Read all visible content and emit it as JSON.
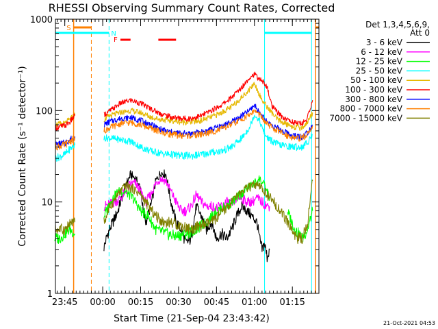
{
  "chart_data": {
    "type": "line",
    "title": "RHESSI Observing Summary Count Rates, Corrected",
    "xlabel": "Start Time (21-Sep-04 23:43:42)",
    "ylabel": "Corrected Count Rate (s⁻¹ detector⁻¹)",
    "yscale": "log",
    "xlim_min": [
      -3.7,
      100.5
    ],
    "ylim": [
      1,
      1000
    ],
    "x_ticks": [
      {
        "m": 0,
        "label": "23:45"
      },
      {
        "m": 15,
        "label": "00:00"
      },
      {
        "m": 30,
        "label": "00:15"
      },
      {
        "m": 45,
        "label": "00:30"
      },
      {
        "m": 60,
        "label": "00:45"
      },
      {
        "m": 75,
        "label": "01:00"
      },
      {
        "m": 90,
        "label": "01:15"
      }
    ],
    "y_ticks": [
      {
        "v": 1,
        "label": "1"
      },
      {
        "v": 10,
        "label": "10"
      },
      {
        "v": 100,
        "label": "100"
      },
      {
        "v": 1000,
        "label": "1000"
      }
    ],
    "legend": {
      "header": "Det 1,3,4,5,6,9,",
      "header2": "Att 0",
      "placement": "right"
    },
    "timestamp": "21-Oct-2021 04:53",
    "flag_labels": {
      "saa": "S",
      "night": "N",
      "flare": "F"
    },
    "flags": {
      "saa_m": [
        [
          3.5,
          10.5
        ],
        [
          99.2,
          100.5
        ]
      ],
      "night_m": [
        [
          -3.7,
          17.5
        ],
        [
          79,
          97.6
        ]
      ],
      "flare_m": [
        [
          22,
          26
        ],
        [
          37,
          44
        ]
      ]
    },
    "series": [
      {
        "name": "3 - 6 keV",
        "color": "#000000",
        "points": [
          [
            15.5,
            3.2
          ],
          [
            17,
            4.5
          ],
          [
            19,
            6
          ],
          [
            21,
            8
          ],
          [
            24,
            15
          ],
          [
            26,
            20
          ],
          [
            28,
            18
          ],
          [
            30,
            14
          ],
          [
            31,
            8
          ],
          [
            32,
            6
          ],
          [
            34,
            9
          ],
          [
            36,
            17
          ],
          [
            38,
            21
          ],
          [
            40,
            20
          ],
          [
            42,
            10
          ],
          [
            44,
            6
          ],
          [
            46,
            5
          ],
          [
            48,
            3.5
          ],
          [
            50,
            4
          ],
          [
            52,
            9
          ],
          [
            54,
            7
          ],
          [
            56,
            5
          ],
          [
            58,
            6
          ],
          [
            60,
            4
          ],
          [
            62,
            4.5
          ],
          [
            64,
            4
          ],
          [
            66,
            5
          ],
          [
            68,
            7
          ],
          [
            70,
            9
          ],
          [
            72,
            8
          ],
          [
            74,
            7
          ],
          [
            76,
            6
          ],
          [
            77,
            4
          ],
          [
            78,
            3
          ],
          [
            79,
            3.5
          ],
          [
            80,
            2.5
          ],
          [
            81,
            3
          ]
        ]
      },
      {
        "name": "6 - 12 keV",
        "color": "#ff00ff",
        "points": [
          [
            15.5,
            9
          ],
          [
            18,
            9.5
          ],
          [
            20,
            10
          ],
          [
            22,
            11
          ],
          [
            24,
            13
          ],
          [
            26,
            16
          ],
          [
            28,
            16
          ],
          [
            30,
            13
          ],
          [
            32,
            10
          ],
          [
            34,
            12
          ],
          [
            36,
            16
          ],
          [
            38,
            18
          ],
          [
            40,
            17
          ],
          [
            42,
            13
          ],
          [
            44,
            10
          ],
          [
            46,
            8
          ],
          [
            48,
            8
          ],
          [
            50,
            9
          ],
          [
            52,
            12
          ],
          [
            54,
            10
          ],
          [
            56,
            9
          ],
          [
            58,
            9
          ],
          [
            60,
            8.5
          ],
          [
            62,
            9
          ],
          [
            64,
            10
          ],
          [
            66,
            9.5
          ],
          [
            68,
            11
          ],
          [
            70,
            11
          ],
          [
            72,
            10
          ],
          [
            74,
            10
          ],
          [
            76,
            11
          ],
          [
            78,
            10
          ],
          [
            80,
            9
          ],
          [
            81,
            9
          ]
        ]
      },
      {
        "name": "12 - 25 keV",
        "color": "#00ff00",
        "points": [
          [
            -4,
            4
          ],
          [
            -2,
            4
          ],
          [
            0,
            4.5
          ],
          [
            2,
            5
          ],
          [
            4,
            4.5
          ],
          [
            15.5,
            7
          ],
          [
            18,
            10
          ],
          [
            21,
            13
          ],
          [
            24,
            13
          ],
          [
            27,
            11
          ],
          [
            30,
            8
          ],
          [
            33,
            7
          ],
          [
            36,
            5
          ],
          [
            40,
            4.5
          ],
          [
            44,
            4.2
          ],
          [
            48,
            4.5
          ],
          [
            52,
            5
          ],
          [
            56,
            6
          ],
          [
            60,
            8
          ],
          [
            64,
            9
          ],
          [
            68,
            11
          ],
          [
            72,
            14
          ],
          [
            75,
            16
          ],
          [
            77,
            18
          ],
          [
            79,
            15
          ],
          [
            81,
            11
          ],
          [
            88,
            8
          ],
          [
            91,
            5
          ],
          [
            94,
            4
          ],
          [
            96,
            5
          ],
          [
            98,
            8
          ]
        ]
      },
      {
        "name": "25 - 50 keV",
        "color": "#00ffff",
        "points": [
          [
            -3.7,
            30
          ],
          [
            0,
            33
          ],
          [
            2,
            38
          ],
          [
            4,
            42
          ],
          [
            15.5,
            50
          ],
          [
            18,
            50
          ],
          [
            22,
            48
          ],
          [
            26,
            46
          ],
          [
            30,
            40
          ],
          [
            34,
            36
          ],
          [
            38,
            34
          ],
          [
            42,
            33
          ],
          [
            46,
            32
          ],
          [
            50,
            32
          ],
          [
            54,
            33
          ],
          [
            58,
            35
          ],
          [
            62,
            36
          ],
          [
            66,
            40
          ],
          [
            70,
            50
          ],
          [
            73,
            65
          ],
          [
            75,
            90
          ],
          [
            77,
            78
          ],
          [
            79,
            55
          ],
          [
            81,
            48
          ],
          [
            85,
            42
          ],
          [
            90,
            40
          ],
          [
            94,
            40
          ],
          [
            96,
            45
          ],
          [
            98,
            55
          ]
        ]
      },
      {
        "name": "50 - 100 keV",
        "color": "#e6b800",
        "points": [
          [
            -3.7,
            70
          ],
          [
            0,
            72
          ],
          [
            2,
            80
          ],
          [
            4,
            90
          ],
          [
            15.5,
            80
          ],
          [
            18,
            88
          ],
          [
            22,
            95
          ],
          [
            26,
            100
          ],
          [
            30,
            95
          ],
          [
            34,
            85
          ],
          [
            38,
            80
          ],
          [
            42,
            78
          ],
          [
            46,
            75
          ],
          [
            50,
            75
          ],
          [
            54,
            78
          ],
          [
            58,
            85
          ],
          [
            62,
            95
          ],
          [
            66,
            110
          ],
          [
            70,
            140
          ],
          [
            73,
            170
          ],
          [
            75,
            200
          ],
          [
            76.5,
            160
          ],
          [
            78,
            130
          ],
          [
            80,
            110
          ],
          [
            84,
            80
          ],
          [
            88,
            70
          ],
          [
            92,
            65
          ],
          [
            94,
            65
          ],
          [
            96,
            75
          ],
          [
            98,
            95
          ]
        ]
      },
      {
        "name": "100 - 300 keV",
        "color": "#ff0000",
        "points": [
          [
            -3.7,
            65
          ],
          [
            0,
            68
          ],
          [
            2,
            75
          ],
          [
            4,
            88
          ],
          [
            15.5,
            90
          ],
          [
            18,
            100
          ],
          [
            22,
            120
          ],
          [
            26,
            130
          ],
          [
            30,
            120
          ],
          [
            34,
            105
          ],
          [
            38,
            92
          ],
          [
            42,
            85
          ],
          [
            46,
            82
          ],
          [
            50,
            82
          ],
          [
            54,
            88
          ],
          [
            58,
            100
          ],
          [
            62,
            115
          ],
          [
            66,
            140
          ],
          [
            70,
            180
          ],
          [
            73,
            230
          ],
          [
            75,
            250
          ],
          [
            77,
            220
          ],
          [
            79,
            200
          ],
          [
            80,
            180
          ],
          [
            82,
            110
          ],
          [
            86,
            85
          ],
          [
            90,
            75
          ],
          [
            93,
            72
          ],
          [
            95,
            75
          ],
          [
            97,
            100
          ],
          [
            98,
            130
          ]
        ]
      },
      {
        "name": "300 - 800 keV",
        "color": "#0000ff",
        "points": [
          [
            -3.7,
            42
          ],
          [
            0,
            44
          ],
          [
            2,
            48
          ],
          [
            4,
            52
          ],
          [
            15.5,
            70
          ],
          [
            18,
            76
          ],
          [
            22,
            82
          ],
          [
            26,
            84
          ],
          [
            30,
            78
          ],
          [
            34,
            70
          ],
          [
            38,
            62
          ],
          [
            42,
            58
          ],
          [
            46,
            56
          ],
          [
            50,
            56
          ],
          [
            54,
            58
          ],
          [
            58,
            62
          ],
          [
            62,
            68
          ],
          [
            66,
            75
          ],
          [
            70,
            88
          ],
          [
            73,
            100
          ],
          [
            75,
            115
          ],
          [
            77,
            95
          ],
          [
            79,
            80
          ],
          [
            81,
            72
          ],
          [
            85,
            62
          ],
          [
            89,
            55
          ],
          [
            92,
            52
          ],
          [
            94,
            52
          ],
          [
            96,
            58
          ],
          [
            98,
            70
          ]
        ]
      },
      {
        "name": "800 - 7000 keV",
        "color": "#ff8000",
        "points": [
          [
            -3.7,
            40
          ],
          [
            0,
            42
          ],
          [
            2,
            46
          ],
          [
            4,
            50
          ],
          [
            15.5,
            60
          ],
          [
            18,
            65
          ],
          [
            22,
            72
          ],
          [
            26,
            74
          ],
          [
            30,
            70
          ],
          [
            34,
            64
          ],
          [
            38,
            58
          ],
          [
            42,
            55
          ],
          [
            46,
            53
          ],
          [
            50,
            53
          ],
          [
            54,
            55
          ],
          [
            58,
            58
          ],
          [
            62,
            63
          ],
          [
            66,
            70
          ],
          [
            70,
            80
          ],
          [
            73,
            90
          ],
          [
            75,
            100
          ],
          [
            77,
            90
          ],
          [
            79,
            76
          ],
          [
            81,
            68
          ],
          [
            85,
            58
          ],
          [
            89,
            52
          ],
          [
            92,
            50
          ],
          [
            94,
            50
          ],
          [
            96,
            55
          ],
          [
            98,
            68
          ]
        ]
      },
      {
        "name": "7000 - 15000 keV",
        "color": "#808000",
        "points": [
          [
            -3.7,
            5
          ],
          [
            0,
            5
          ],
          [
            3,
            6
          ],
          [
            4,
            6
          ],
          [
            15.5,
            6
          ],
          [
            18,
            9
          ],
          [
            21,
            12
          ],
          [
            24,
            15
          ],
          [
            27,
            14
          ],
          [
            30,
            12
          ],
          [
            33,
            9
          ],
          [
            36,
            7
          ],
          [
            39,
            6
          ],
          [
            42,
            6
          ],
          [
            46,
            5.5
          ],
          [
            50,
            5
          ],
          [
            54,
            5.5
          ],
          [
            58,
            6
          ],
          [
            62,
            7.5
          ],
          [
            66,
            10
          ],
          [
            70,
            13
          ],
          [
            74,
            15
          ],
          [
            76,
            15
          ],
          [
            78,
            14
          ],
          [
            80,
            12
          ],
          [
            84,
            9
          ],
          [
            88,
            6
          ],
          [
            92,
            4
          ],
          [
            94,
            4
          ],
          [
            96,
            6
          ],
          [
            98,
            17
          ]
        ]
      }
    ]
  }
}
